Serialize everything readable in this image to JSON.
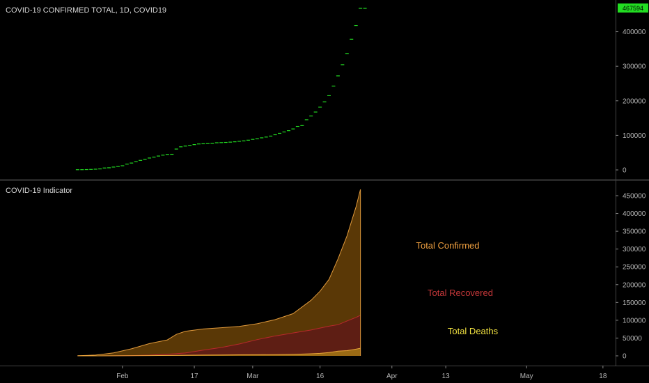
{
  "top_panel": {
    "title": "COVID-19 CONFIRMED TOTAL, 1D, COVID19",
    "last_value_label": "467594"
  },
  "bottom_panel": {
    "title": "COVID-19 Indicator"
  },
  "colors": {
    "background": "#000000",
    "candle": "#22dd22",
    "last_value_badge": "#22dd22",
    "confirmed_line": "#e09a3c",
    "confirmed_fill": "#5a3806",
    "recovered_line": "#b8292b",
    "recovered_fill": "#5e1e14",
    "deaths_line": "#e8a53a",
    "deaths_fill": "#9a6a14",
    "confirmed_text": "#f0a040",
    "recovered_text": "#c8383a",
    "deaths_text": "#f0e040",
    "separator": "#888888"
  },
  "chart_data": [
    {
      "type": "scatter",
      "title": "COVID-19 CONFIRMED TOTAL, 1D, COVID19",
      "ylim": [
        -15000,
        500000
      ],
      "yticks": [
        0,
        100000,
        200000,
        300000,
        400000
      ],
      "ytick_labels": [
        "0",
        "100000",
        "200000",
        "300000",
        "400000"
      ],
      "last_value": 467594,
      "series": [
        {
          "name": "",
          "x": [
            "2020-01-22",
            "2020-01-23",
            "2020-01-24",
            "2020-01-25",
            "2020-01-26",
            "2020-01-27",
            "2020-01-28",
            "2020-01-29",
            "2020-01-30",
            "2020-01-31",
            "2020-02-01",
            "2020-02-02",
            "2020-02-03",
            "2020-02-04",
            "2020-02-05",
            "2020-02-06",
            "2020-02-07",
            "2020-02-08",
            "2020-02-09",
            "2020-02-10",
            "2020-02-11",
            "2020-02-12",
            "2020-02-13",
            "2020-02-14",
            "2020-02-15",
            "2020-02-16",
            "2020-02-17",
            "2020-02-18",
            "2020-02-19",
            "2020-02-20",
            "2020-02-21",
            "2020-02-22",
            "2020-02-23",
            "2020-02-24",
            "2020-02-25",
            "2020-02-26",
            "2020-02-27",
            "2020-02-28",
            "2020-02-29",
            "2020-03-01",
            "2020-03-02",
            "2020-03-03",
            "2020-03-04",
            "2020-03-05",
            "2020-03-06",
            "2020-03-07",
            "2020-03-08",
            "2020-03-09",
            "2020-03-10",
            "2020-03-11",
            "2020-03-12",
            "2020-03-13",
            "2020-03-14",
            "2020-03-15",
            "2020-03-16",
            "2020-03-17",
            "2020-03-18",
            "2020-03-19",
            "2020-03-20",
            "2020-03-21",
            "2020-03-22",
            "2020-03-23",
            "2020-03-24",
            "2020-03-25",
            "2020-03-26"
          ],
          "values": [
            555,
            654,
            941,
            1434,
            2118,
            2927,
            5578,
            6166,
            8234,
            9927,
            12038,
            16787,
            19881,
            23892,
            27635,
            30817,
            34391,
            37120,
            40150,
            42762,
            44802,
            45221,
            60368,
            66885,
            69030,
            71224,
            73258,
            75136,
            75639,
            76197,
            76819,
            78572,
            78958,
            79561,
            80406,
            81388,
            82746,
            84112,
            86011,
            88369,
            90306,
            92840,
            95120,
            97886,
            101801,
            105847,
            109821,
            113590,
            118620,
            125875,
            128352,
            145205,
            156101,
            167454,
            181574,
            197102,
            214821,
            242570,
            272208,
            304507,
            336953,
            378235,
            418045,
            467594,
            467594
          ]
        }
      ]
    },
    {
      "type": "area",
      "title": "COVID-19 Indicator",
      "ylim": [
        -10000,
        480000
      ],
      "yticks": [
        0,
        50000,
        100000,
        150000,
        200000,
        250000,
        300000,
        350000,
        400000,
        450000
      ],
      "ytick_labels": [
        "0",
        "50000",
        "100000",
        "150000",
        "200000",
        "250000",
        "300000",
        "350000",
        "400000",
        "450000"
      ],
      "x_domain": [
        "2020-01-10",
        "2020-05-25"
      ],
      "x_ticks": [
        {
          "date": "2020-02-01",
          "label": "Feb"
        },
        {
          "date": "2020-02-17",
          "label": "17"
        },
        {
          "date": "2020-03-01",
          "label": "Mar"
        },
        {
          "date": "2020-03-16",
          "label": "16"
        },
        {
          "date": "2020-04-01",
          "label": "Apr"
        },
        {
          "date": "2020-04-13",
          "label": "13"
        },
        {
          "date": "2020-05-01",
          "label": "May"
        },
        {
          "date": "2020-05-18",
          "label": "18"
        }
      ],
      "x": [
        "2020-01-22",
        "2020-01-26",
        "2020-01-30",
        "2020-02-03",
        "2020-02-07",
        "2020-02-11",
        "2020-02-13",
        "2020-02-15",
        "2020-02-19",
        "2020-02-23",
        "2020-02-27",
        "2020-03-02",
        "2020-03-06",
        "2020-03-10",
        "2020-03-14",
        "2020-03-16",
        "2020-03-18",
        "2020-03-20",
        "2020-03-22",
        "2020-03-24",
        "2020-03-25"
      ],
      "series": [
        {
          "name": "Total Confirmed",
          "values": [
            555,
            2118,
            8234,
            19881,
            34391,
            44802,
            60368,
            69030,
            75639,
            78958,
            82746,
            90306,
            101801,
            118620,
            156101,
            181574,
            214821,
            272208,
            336953,
            418045,
            467594
          ]
        },
        {
          "name": "Total Recovered",
          "values": [
            28,
            52,
            143,
            614,
            2011,
            4683,
            6217,
            8058,
            16121,
            23394,
            33277,
            45602,
            55866,
            64404,
            72624,
            78088,
            83313,
            87403,
            97882,
            107990,
            113770
          ]
        },
        {
          "name": "Total Deaths",
          "values": [
            17,
            56,
            171,
            425,
            719,
            1112,
            1370,
            1666,
            2122,
            2469,
            2814,
            3161,
            3460,
            4262,
            5821,
            7126,
            9196,
            13111,
            14647,
            18907,
            21181
          ]
        }
      ]
    }
  ]
}
